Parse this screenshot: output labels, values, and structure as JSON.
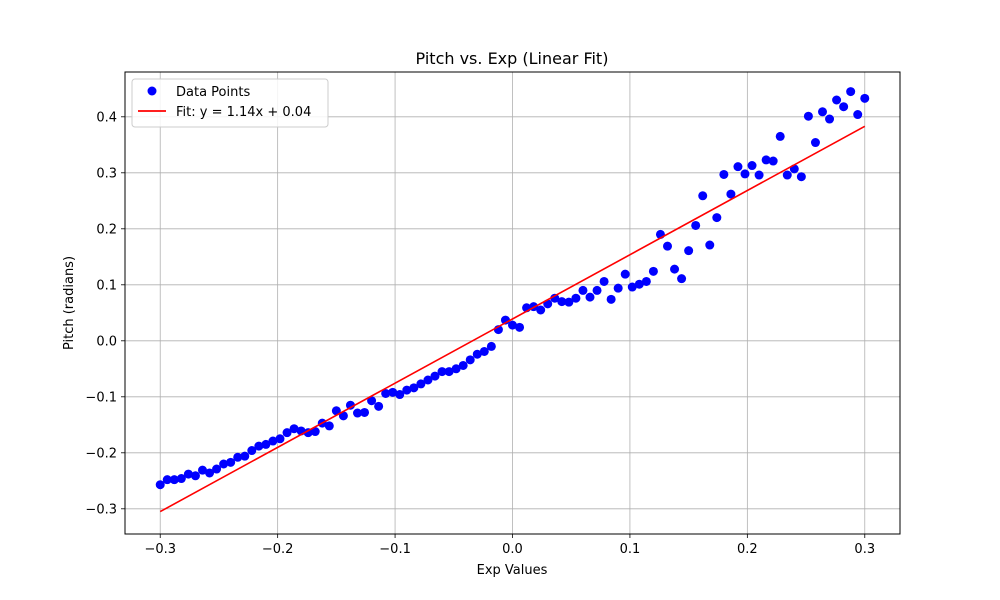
{
  "chart_data": {
    "type": "scatter",
    "title": "Pitch vs. Exp (Linear Fit)",
    "xlabel": "Exp Values",
    "ylabel": "Pitch (radians)",
    "xlim": [
      -0.33,
      0.33
    ],
    "ylim": [
      -0.345,
      0.48
    ],
    "xticks": [
      -0.3,
      -0.2,
      -0.1,
      0.0,
      0.1,
      0.2,
      0.3
    ],
    "xtick_labels": [
      "−0.3",
      "−0.2",
      "−0.1",
      "0.0",
      "0.1",
      "0.2",
      "0.3"
    ],
    "yticks": [
      -0.3,
      -0.2,
      -0.1,
      0.0,
      0.1,
      0.2,
      0.3,
      0.4
    ],
    "ytick_labels": [
      "−0.3",
      "−0.2",
      "−0.1",
      "0.0",
      "0.1",
      "0.2",
      "0.3",
      "0.4"
    ],
    "grid": true,
    "legend_position": "top-left",
    "series": [
      {
        "name": "Data Points",
        "type": "scatter",
        "color": "#0000ff",
        "x": [
          -0.3,
          -0.294,
          -0.288,
          -0.282,
          -0.276,
          -0.27,
          -0.264,
          -0.258,
          -0.252,
          -0.246,
          -0.24,
          -0.234,
          -0.228,
          -0.222,
          -0.216,
          -0.21,
          -0.204,
          -0.198,
          -0.192,
          -0.186,
          -0.18,
          -0.174,
          -0.168,
          -0.162,
          -0.156,
          -0.15,
          -0.144,
          -0.138,
          -0.132,
          -0.126,
          -0.12,
          -0.114,
          -0.108,
          -0.102,
          -0.096,
          -0.09,
          -0.084,
          -0.078,
          -0.072,
          -0.066,
          -0.06,
          -0.054,
          -0.048,
          -0.042,
          -0.036,
          -0.03,
          -0.024,
          -0.018,
          -0.012,
          -0.006,
          0.0,
          0.006,
          0.012,
          0.018,
          0.024,
          0.03,
          0.036,
          0.042,
          0.048,
          0.054,
          0.06,
          0.066,
          0.072,
          0.078,
          0.084,
          0.09,
          0.096,
          0.102,
          0.108,
          0.114,
          0.12,
          0.126,
          0.132,
          0.138,
          0.144,
          0.15,
          0.156,
          0.162,
          0.168,
          0.174,
          0.18,
          0.186,
          0.192,
          0.198,
          0.204,
          0.21,
          0.216,
          0.222,
          0.228,
          0.234,
          0.24,
          0.246,
          0.252,
          0.258,
          0.264,
          0.27,
          0.276,
          0.282,
          0.288,
          0.294,
          0.3
        ],
        "y": [
          -0.257,
          -0.248,
          -0.248,
          -0.246,
          -0.238,
          -0.241,
          -0.231,
          -0.236,
          -0.229,
          -0.22,
          -0.217,
          -0.208,
          -0.206,
          -0.196,
          -0.188,
          -0.185,
          -0.179,
          -0.175,
          -0.164,
          -0.157,
          -0.161,
          -0.164,
          -0.162,
          -0.147,
          -0.152,
          -0.125,
          -0.134,
          -0.115,
          -0.129,
          -0.128,
          -0.107,
          -0.117,
          -0.094,
          -0.092,
          -0.096,
          -0.088,
          -0.084,
          -0.077,
          -0.07,
          -0.063,
          -0.055,
          -0.055,
          -0.05,
          -0.044,
          -0.034,
          -0.024,
          -0.019,
          -0.01,
          0.02,
          0.037,
          0.028,
          0.024,
          0.059,
          0.061,
          0.055,
          0.066,
          0.076,
          0.07,
          0.069,
          0.076,
          0.09,
          0.078,
          0.09,
          0.106,
          0.074,
          0.094,
          0.119,
          0.096,
          0.101,
          0.106,
          0.124,
          0.19,
          0.169,
          0.128,
          0.111,
          0.161,
          0.206,
          0.259,
          0.171,
          0.22,
          0.297,
          0.262,
          0.311,
          0.298,
          0.313,
          0.296,
          0.323,
          0.321,
          0.365,
          0.296,
          0.307,
          0.293,
          0.401,
          0.354,
          0.409,
          0.396,
          0.43,
          0.418,
          0.445,
          0.404,
          0.433
        ]
      },
      {
        "name": "Fit: y = 1.14x + 0.04",
        "type": "line",
        "color": "#ff0000",
        "x": [
          -0.3,
          0.3
        ],
        "y": [
          -0.305,
          0.383
        ]
      }
    ]
  }
}
